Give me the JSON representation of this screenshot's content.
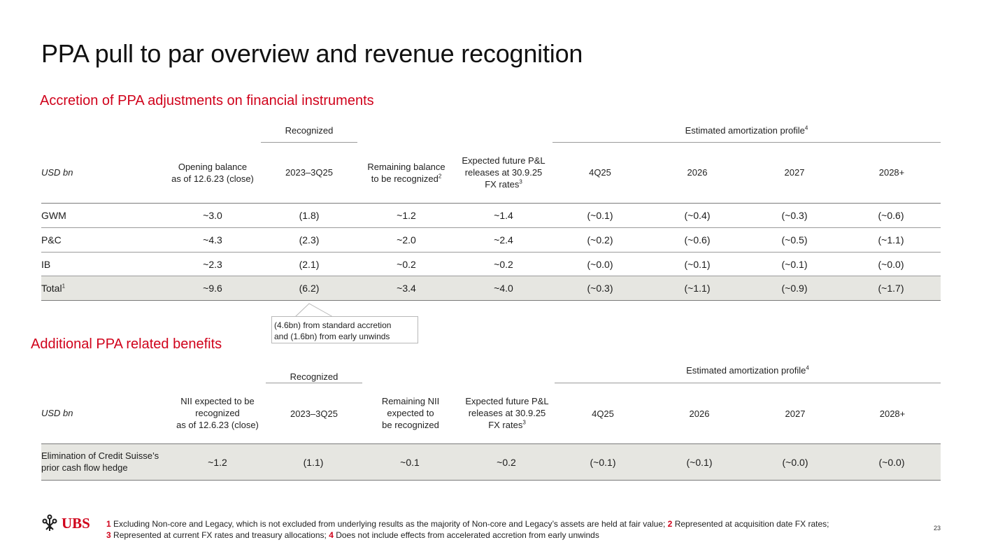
{
  "title": "PPA pull to par overview and revenue recognition",
  "section1": {
    "heading": "Accretion of PPA adjustments on financial instruments",
    "group_recognized": "Recognized",
    "group_estimated": "Estimated amortization profile",
    "group_estimated_sup": "4",
    "headers": {
      "unit": "USD bn",
      "opening_l1": "Opening balance",
      "opening_l2": "as of 12.6.23 (close)",
      "recognized_period": "2023–3Q25",
      "remaining_l1": "Remaining balance",
      "remaining_l2": "to be recognized",
      "remaining_sup": "2",
      "expected_l1": "Expected future P&L",
      "expected_l2": "releases at 30.9.25",
      "expected_l3": "FX rates",
      "expected_sup": "3",
      "q4": "4Q25",
      "y2026": "2026",
      "y2027": "2027",
      "y2028": "2028+"
    },
    "rows": [
      {
        "label": "GWM",
        "sup": "",
        "values": [
          "~3.0",
          "(1.8)",
          "~1.2",
          "~1.4",
          "(~0.1)",
          "(~0.4)",
          "(~0.3)",
          "(~0.6)"
        ]
      },
      {
        "label": "P&C",
        "sup": "",
        "values": [
          "~4.3",
          "(2.3)",
          "~2.0",
          "~2.4",
          "(~0.2)",
          "(~0.6)",
          "(~0.5)",
          "(~1.1)"
        ]
      },
      {
        "label": "IB",
        "sup": "",
        "values": [
          "~2.3",
          "(2.1)",
          "~0.2",
          "~0.2",
          "(~0.0)",
          "(~0.1)",
          "(~0.1)",
          "(~0.0)"
        ]
      },
      {
        "label": "Total",
        "sup": "1",
        "values": [
          "~9.6",
          "(6.2)",
          "~3.4",
          "~4.0",
          "(~0.3)",
          "(~1.1)",
          "(~0.9)",
          "(~1.7)"
        ]
      }
    ],
    "callout_l1": "(4.6bn) from standard accretion",
    "callout_l2": "and (1.6bn) from early unwinds"
  },
  "section2": {
    "heading": "Additional PPA related benefits",
    "group_recognized": "Recognized",
    "group_estimated": "Estimated amortization profile",
    "group_estimated_sup": "4",
    "headers": {
      "unit": "USD bn",
      "nii_l1": "NII expected to be",
      "nii_l2": "recognized",
      "nii_l3": "as of 12.6.23 (close)",
      "recognized_period": "2023–3Q25",
      "remaining_l1": "Remaining NII",
      "remaining_l2": "expected to",
      "remaining_l3": "be recognized",
      "expected_l1": "Expected future P&L",
      "expected_l2": "releases at 30.9.25",
      "expected_l3": "FX rates",
      "expected_sup": "3",
      "q4": "4Q25",
      "y2026": "2026",
      "y2027": "2027",
      "y2028": "2028+"
    },
    "row": {
      "label_l1": "Elimination of Credit Suisse’s",
      "label_l2": "prior cash flow hedge",
      "values": [
        "~1.2",
        "(1.1)",
        "~0.1",
        "~0.2",
        "(~0.1)",
        "(~0.1)",
        "(~0.0)",
        "(~0.0)"
      ]
    }
  },
  "footnotes": {
    "n1": "1",
    "t1": " Excluding Non-core and Legacy, which is not excluded from underlying results as the majority of Non-core and Legacy’s assets are held at fair value; ",
    "n2": "2",
    "t2": " Represented at acquisition date FX rates;",
    "n3": "3",
    "t3": " Represented at current FX rates and treasury allocations; ",
    "n4": "4",
    "t4": " Does not include effects from accelerated accretion from early unwinds"
  },
  "logo_text": "UBS",
  "page_number": "23",
  "colors": {
    "accent": "#d0021b",
    "total_row_bg": "#e6e6e1",
    "rule": "#9a9a9a"
  }
}
